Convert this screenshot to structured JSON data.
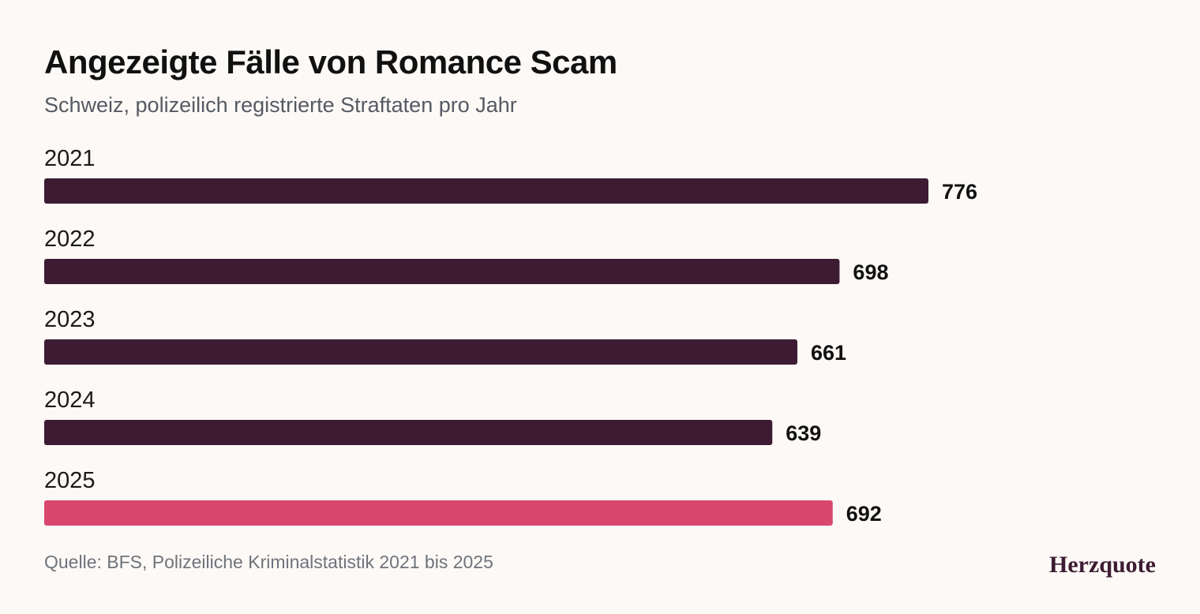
{
  "title": "Angezeigte Fälle von Romance Scam",
  "subtitle": "Schweiz, polizeilich registrierte Straftaten pro Jahr",
  "source": "Quelle: BFS, Polizeiliche Kriminalstatistik 2021 bis 2025",
  "brand": "Herzquote",
  "colors": {
    "default_bar": "#3d1c33",
    "highlight_bar": "#d9476e",
    "background": "#fdf9f6"
  },
  "chart_data": {
    "type": "bar",
    "orientation": "horizontal",
    "categories": [
      "2021",
      "2022",
      "2023",
      "2024",
      "2025"
    ],
    "values": [
      776,
      698,
      661,
      639,
      692
    ],
    "highlight": [
      "2025"
    ],
    "xlim": [
      0,
      776
    ],
    "grid": false,
    "legend": "none"
  }
}
